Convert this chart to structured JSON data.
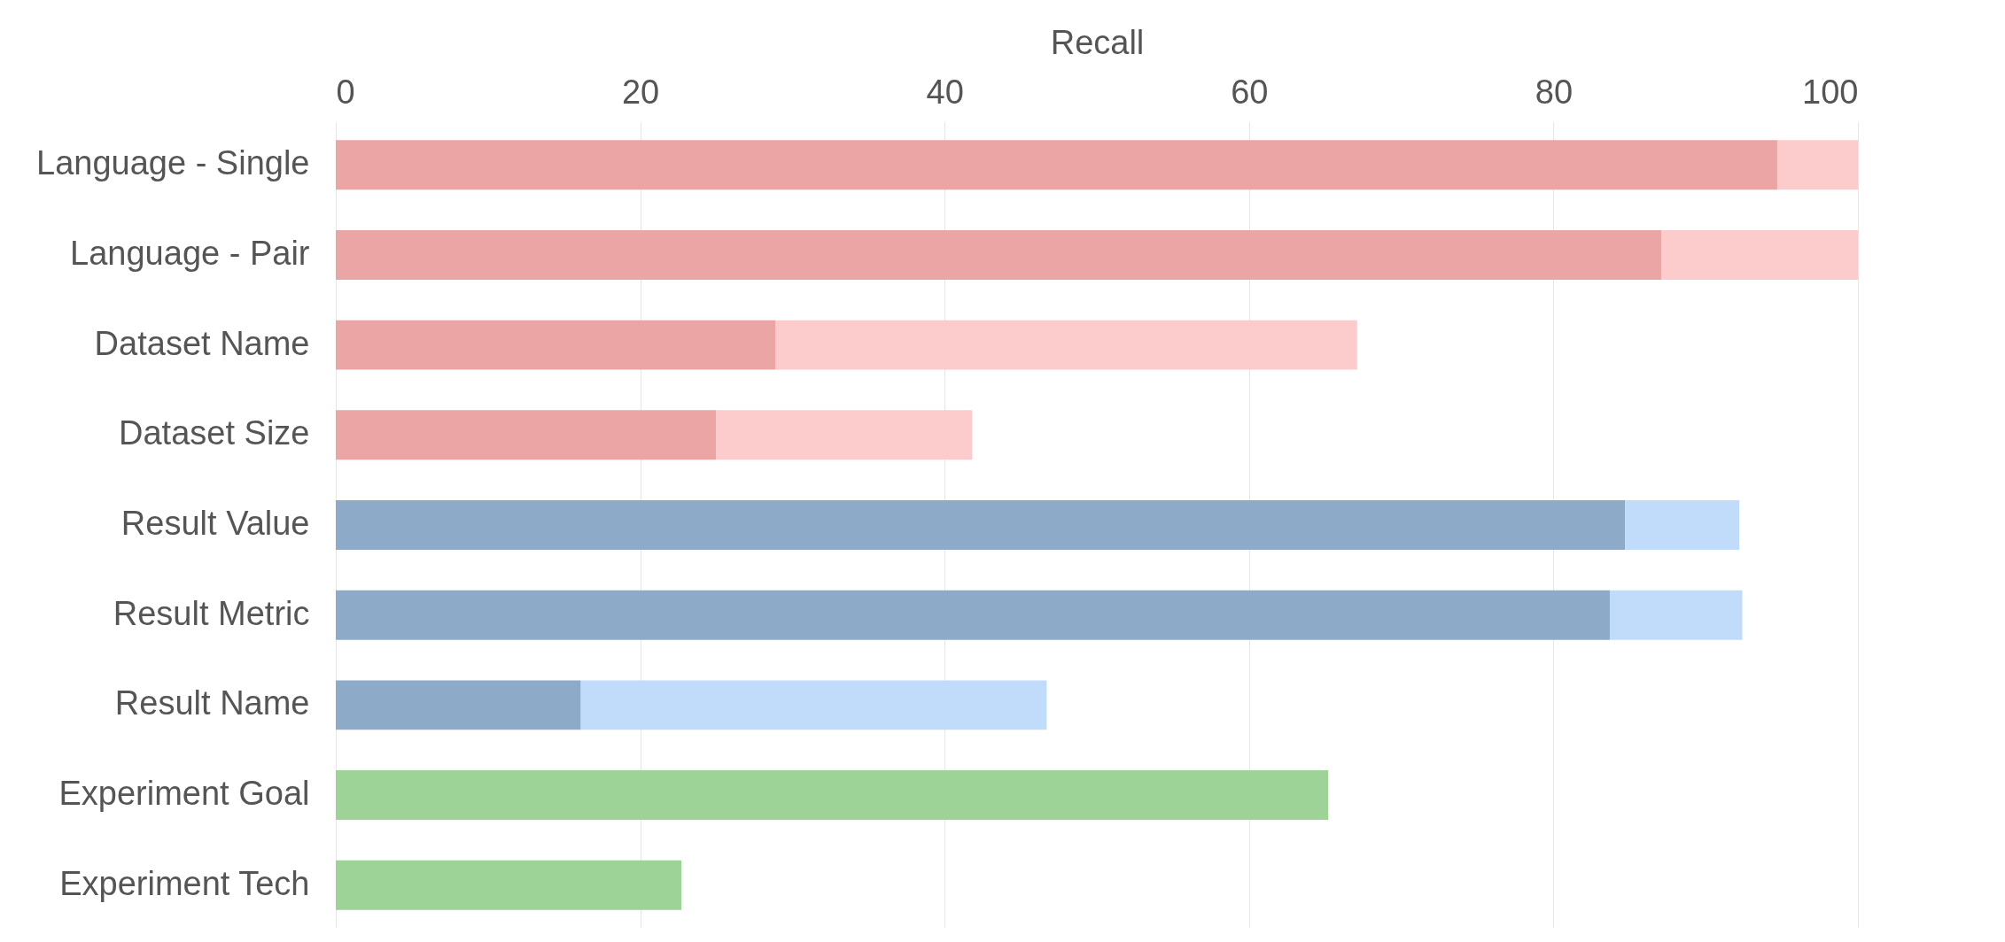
{
  "chart_data": {
    "type": "bar",
    "orientation": "horizontal",
    "stacked": true,
    "xlabel": "Recall",
    "categories": [
      "Language - Single",
      "Language - Pair",
      "Dataset Name",
      "Dataset Size",
      "Result Value",
      "Result Metric",
      "Result Name",
      "Experiment Goal",
      "Experiment Tech"
    ],
    "series": [
      {
        "colors": [
          "#eca5a5",
          "#eca5a5",
          "#eca5a5",
          "#eca5a5",
          "#8daac9",
          "#8daac9",
          "#8daac9",
          "#9dd396",
          "#9dd396"
        ],
        "values": [
          94.7,
          87.1,
          28.9,
          25.0,
          84.7,
          83.7,
          16.1,
          65.2,
          22.7
        ]
      },
      {
        "colors": [
          "#fccccc",
          "#fccccc",
          "#fccccc",
          "#fccccc",
          "#c0dcfa",
          "#c0dcfa",
          "#c0dcfa",
          null,
          null
        ],
        "values": [
          5.3,
          12.9,
          38.2,
          16.8,
          7.5,
          8.7,
          30.6,
          null,
          null
        ]
      }
    ],
    "xlim": [
      0,
      100
    ],
    "xticks": [
      0,
      20,
      40,
      60,
      80,
      100
    ],
    "grid": "x"
  }
}
